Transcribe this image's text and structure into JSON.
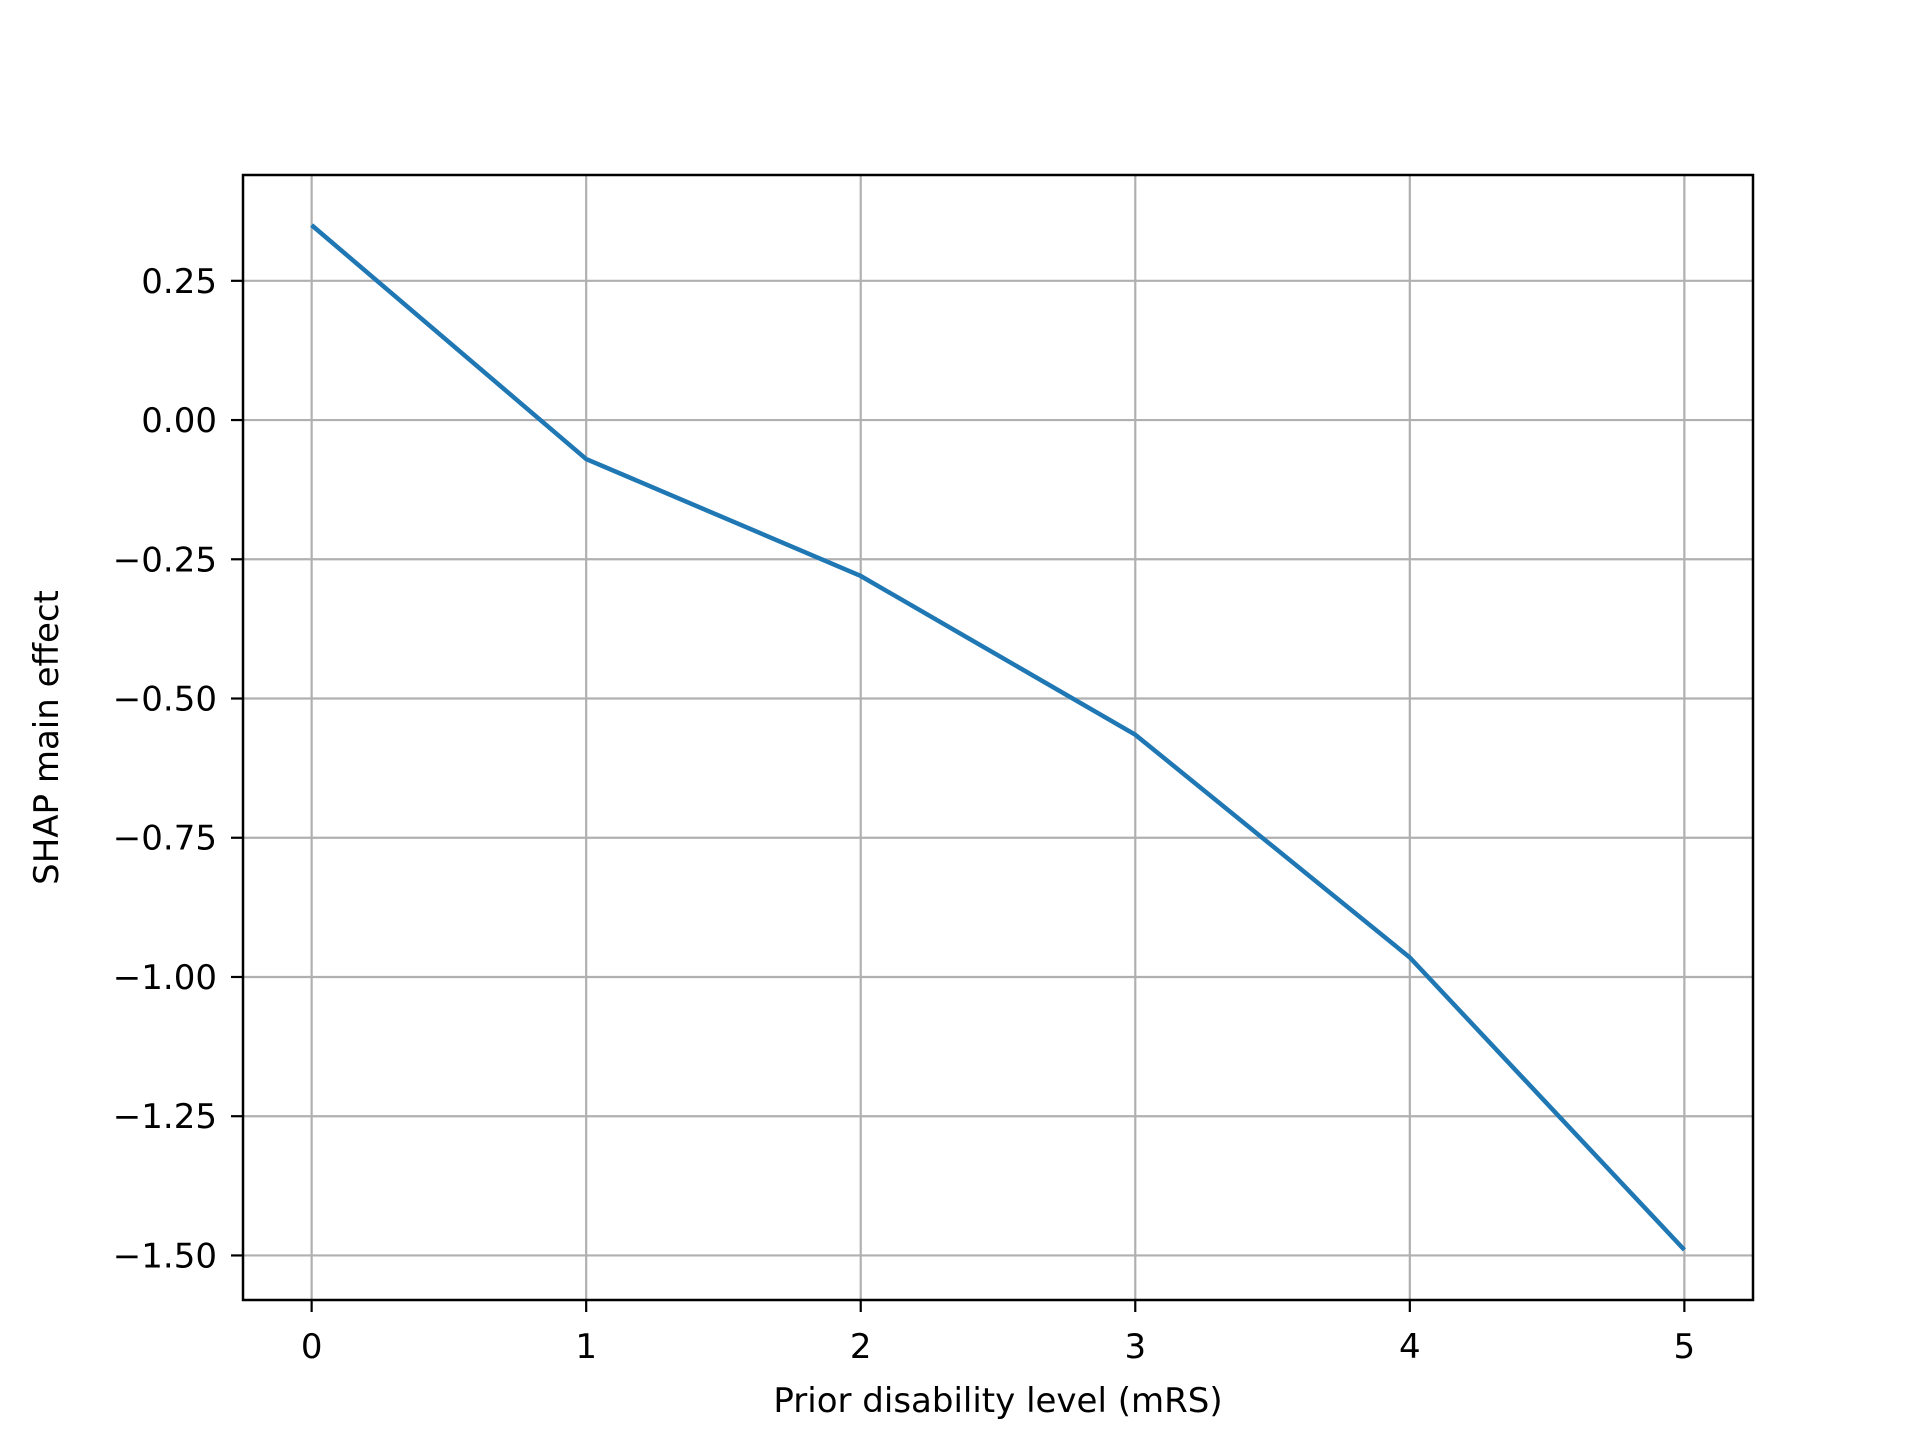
{
  "chart_data": {
    "type": "line",
    "title": "",
    "xlabel": "Prior disability level (mRS)",
    "ylabel": "SHAP main effect",
    "x": [
      0,
      1,
      2,
      3,
      4,
      5
    ],
    "series": [
      {
        "values": [
          0.35,
          -0.07,
          -0.28,
          -0.565,
          -0.965,
          -1.49
        ],
        "color": "#1f77b4"
      }
    ],
    "xlim": [
      -0.25,
      5.25
    ],
    "ylim": [
      -1.58,
      0.44
    ],
    "xticks": [
      0,
      1,
      2,
      3,
      4,
      5
    ],
    "xtick_labels": [
      "0",
      "1",
      "2",
      "3",
      "4",
      "5"
    ],
    "yticks": [
      0.25,
      0.0,
      -0.25,
      -0.5,
      -0.75,
      -1.0,
      -1.25,
      -1.5
    ],
    "ytick_labels": [
      "0.25",
      "0.00",
      "−0.25",
      "−0.50",
      "−0.75",
      "−1.00",
      "−1.25",
      "−1.50"
    ],
    "grid": true,
    "grid_color": "#b0b0b0",
    "legend": "none"
  }
}
